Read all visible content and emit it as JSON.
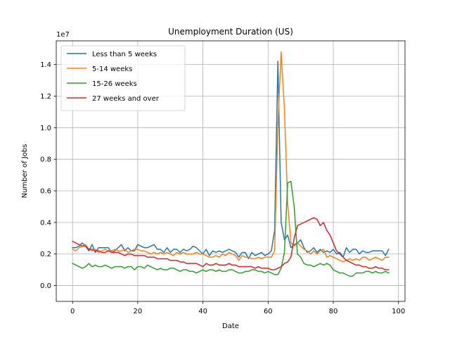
{
  "chart_data": {
    "type": "line",
    "title": "Unemployment Duration (US)",
    "xlabel": "Date",
    "ylabel": "Number of Jobs",
    "y_multiplier_label": "1e7",
    "y_multiplier": 10000000,
    "xlim": [
      -5,
      102
    ],
    "ylim": [
      -0.1,
      1.55
    ],
    "xticks": [
      0,
      20,
      40,
      60,
      80,
      100
    ],
    "yticks": [
      0.0,
      0.2,
      0.4,
      0.6,
      0.8,
      1.0,
      1.2,
      1.4
    ],
    "ytick_labels": [
      "0.0",
      "0.2",
      "0.4",
      "0.6",
      "0.8",
      "1.0",
      "1.2",
      "1.4"
    ],
    "grid": true,
    "legend_position": "top-left",
    "series": [
      {
        "name": "Less than 5 weeks",
        "color": "#1f77b4",
        "values": [
          0.24,
          0.24,
          0.25,
          0.27,
          0.25,
          0.22,
          0.26,
          0.21,
          0.24,
          0.24,
          0.24,
          0.24,
          0.21,
          0.22,
          0.24,
          0.26,
          0.22,
          0.24,
          0.22,
          0.22,
          0.26,
          0.25,
          0.24,
          0.24,
          0.25,
          0.26,
          0.23,
          0.23,
          0.21,
          0.24,
          0.21,
          0.23,
          0.23,
          0.21,
          0.23,
          0.22,
          0.23,
          0.25,
          0.24,
          0.22,
          0.2,
          0.23,
          0.19,
          0.22,
          0.21,
          0.22,
          0.21,
          0.22,
          0.23,
          0.22,
          0.21,
          0.18,
          0.21,
          0.21,
          0.17,
          0.21,
          0.19,
          0.2,
          0.21,
          0.19,
          0.2,
          0.22,
          0.35,
          1.42,
          0.4,
          0.29,
          0.32,
          0.24,
          0.26,
          0.27,
          0.29,
          0.24,
          0.21,
          0.22,
          0.24,
          0.21,
          0.23,
          0.21,
          0.22,
          0.21,
          0.23,
          0.2,
          0.21,
          0.18,
          0.24,
          0.21,
          0.23,
          0.23,
          0.2,
          0.22,
          0.21,
          0.21,
          0.22,
          0.22,
          0.22,
          0.22,
          0.19,
          0.23
        ]
      },
      {
        "name": "5-14 weeks",
        "color": "#ff7f0e",
        "values": [
          0.23,
          0.22,
          0.24,
          0.25,
          0.26,
          0.23,
          0.22,
          0.23,
          0.21,
          0.22,
          0.23,
          0.22,
          0.22,
          0.23,
          0.22,
          0.22,
          0.23,
          0.21,
          0.22,
          0.23,
          0.23,
          0.22,
          0.22,
          0.21,
          0.2,
          0.21,
          0.2,
          0.21,
          0.2,
          0.21,
          0.2,
          0.19,
          0.21,
          0.2,
          0.21,
          0.2,
          0.2,
          0.2,
          0.21,
          0.2,
          0.2,
          0.19,
          0.18,
          0.18,
          0.19,
          0.18,
          0.2,
          0.19,
          0.21,
          0.2,
          0.19,
          0.16,
          0.19,
          0.18,
          0.18,
          0.17,
          0.17,
          0.18,
          0.17,
          0.18,
          0.18,
          0.18,
          0.22,
          1.02,
          1.48,
          1.12,
          0.52,
          0.27,
          0.25,
          0.27,
          0.25,
          0.23,
          0.22,
          0.2,
          0.22,
          0.2,
          0.22,
          0.23,
          0.18,
          0.19,
          0.18,
          0.17,
          0.16,
          0.15,
          0.16,
          0.17,
          0.16,
          0.17,
          0.16,
          0.18,
          0.18,
          0.16,
          0.17,
          0.18,
          0.17,
          0.16,
          0.18,
          0.18
        ]
      },
      {
        "name": "15-26 weeks",
        "color": "#2ca02c",
        "values": [
          0.14,
          0.13,
          0.12,
          0.11,
          0.12,
          0.14,
          0.12,
          0.13,
          0.12,
          0.12,
          0.13,
          0.12,
          0.11,
          0.12,
          0.12,
          0.12,
          0.11,
          0.12,
          0.12,
          0.1,
          0.12,
          0.12,
          0.11,
          0.13,
          0.12,
          0.11,
          0.1,
          0.11,
          0.1,
          0.1,
          0.11,
          0.11,
          0.1,
          0.09,
          0.1,
          0.1,
          0.09,
          0.09,
          0.08,
          0.09,
          0.1,
          0.09,
          0.1,
          0.1,
          0.09,
          0.1,
          0.09,
          0.09,
          0.1,
          0.1,
          0.09,
          0.08,
          0.08,
          0.09,
          0.09,
          0.1,
          0.1,
          0.09,
          0.09,
          0.08,
          0.09,
          0.08,
          0.07,
          0.07,
          0.11,
          0.21,
          0.65,
          0.66,
          0.5,
          0.2,
          0.18,
          0.14,
          0.13,
          0.13,
          0.12,
          0.13,
          0.14,
          0.13,
          0.14,
          0.13,
          0.1,
          0.09,
          0.08,
          0.08,
          0.07,
          0.06,
          0.06,
          0.08,
          0.08,
          0.08,
          0.09,
          0.09,
          0.08,
          0.09,
          0.08,
          0.08,
          0.09,
          0.08
        ]
      },
      {
        "name": "27 weeks and over",
        "color": "#d62728",
        "values": [
          0.28,
          0.27,
          0.26,
          0.25,
          0.25,
          0.23,
          0.23,
          0.22,
          0.22,
          0.21,
          0.21,
          0.22,
          0.21,
          0.21,
          0.21,
          0.2,
          0.19,
          0.2,
          0.2,
          0.19,
          0.19,
          0.19,
          0.19,
          0.18,
          0.18,
          0.18,
          0.17,
          0.17,
          0.17,
          0.17,
          0.16,
          0.16,
          0.16,
          0.15,
          0.15,
          0.14,
          0.14,
          0.14,
          0.14,
          0.13,
          0.12,
          0.14,
          0.13,
          0.13,
          0.14,
          0.13,
          0.13,
          0.13,
          0.14,
          0.13,
          0.13,
          0.12,
          0.12,
          0.12,
          0.12,
          0.12,
          0.11,
          0.12,
          0.11,
          0.11,
          0.11,
          0.1,
          0.1,
          0.11,
          0.12,
          0.14,
          0.15,
          0.18,
          0.3,
          0.38,
          0.39,
          0.4,
          0.41,
          0.42,
          0.43,
          0.42,
          0.38,
          0.4,
          0.35,
          0.32,
          0.27,
          0.22,
          0.2,
          0.18,
          0.16,
          0.15,
          0.14,
          0.13,
          0.13,
          0.12,
          0.12,
          0.11,
          0.11,
          0.12,
          0.11,
          0.11,
          0.1,
          0.1
        ]
      }
    ]
  }
}
